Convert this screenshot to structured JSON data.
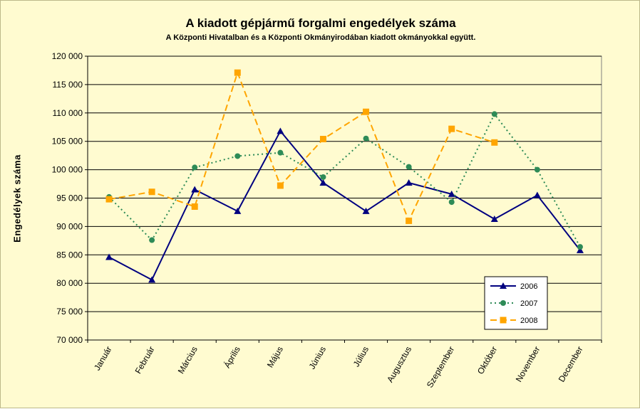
{
  "chart_data": {
    "type": "line",
    "title": "A  kiadott gépjármű forgalmi engedélyek száma",
    "subtitle": "A  Központi Hivatalban és a Központi Okmányirodában kiadott okmányokkal együtt.",
    "ylabel": "Engedélyek száma",
    "xlabel": "",
    "ylim": [
      70000,
      120000
    ],
    "yticks": [
      "70 000",
      "75 000",
      "80 000",
      "85 000",
      "90 000",
      "95 000",
      "100 000",
      "105 000",
      "110 000",
      "115 000",
      "120 000"
    ],
    "categories": [
      "Január",
      "Február",
      "Március",
      "Április",
      "Május",
      "Június",
      "Július",
      "Augusztus",
      "Szeptember",
      "Október",
      "November",
      "December"
    ],
    "grid": "horizontal",
    "legend_position": "bottom-right",
    "series": [
      {
        "name": "2006",
        "color": "#000080",
        "dash": "solid",
        "marker": "triangle",
        "values": [
          84600,
          80600,
          96500,
          92700,
          106800,
          97700,
          92700,
          97700,
          95700,
          91300,
          95500,
          85800
        ]
      },
      {
        "name": "2007",
        "color": "#2e8b57",
        "dash": "dotted",
        "marker": "circle",
        "values": [
          95200,
          87600,
          100400,
          102400,
          103000,
          98700,
          105500,
          100500,
          94300,
          109800,
          100000,
          86400
        ]
      },
      {
        "name": "2008",
        "color": "#ffa500",
        "dash": "dashed",
        "marker": "square",
        "values": [
          94800,
          96100,
          93500,
          117100,
          97200,
          105400,
          110200,
          91000,
          107200,
          104800,
          null,
          null
        ]
      }
    ]
  }
}
